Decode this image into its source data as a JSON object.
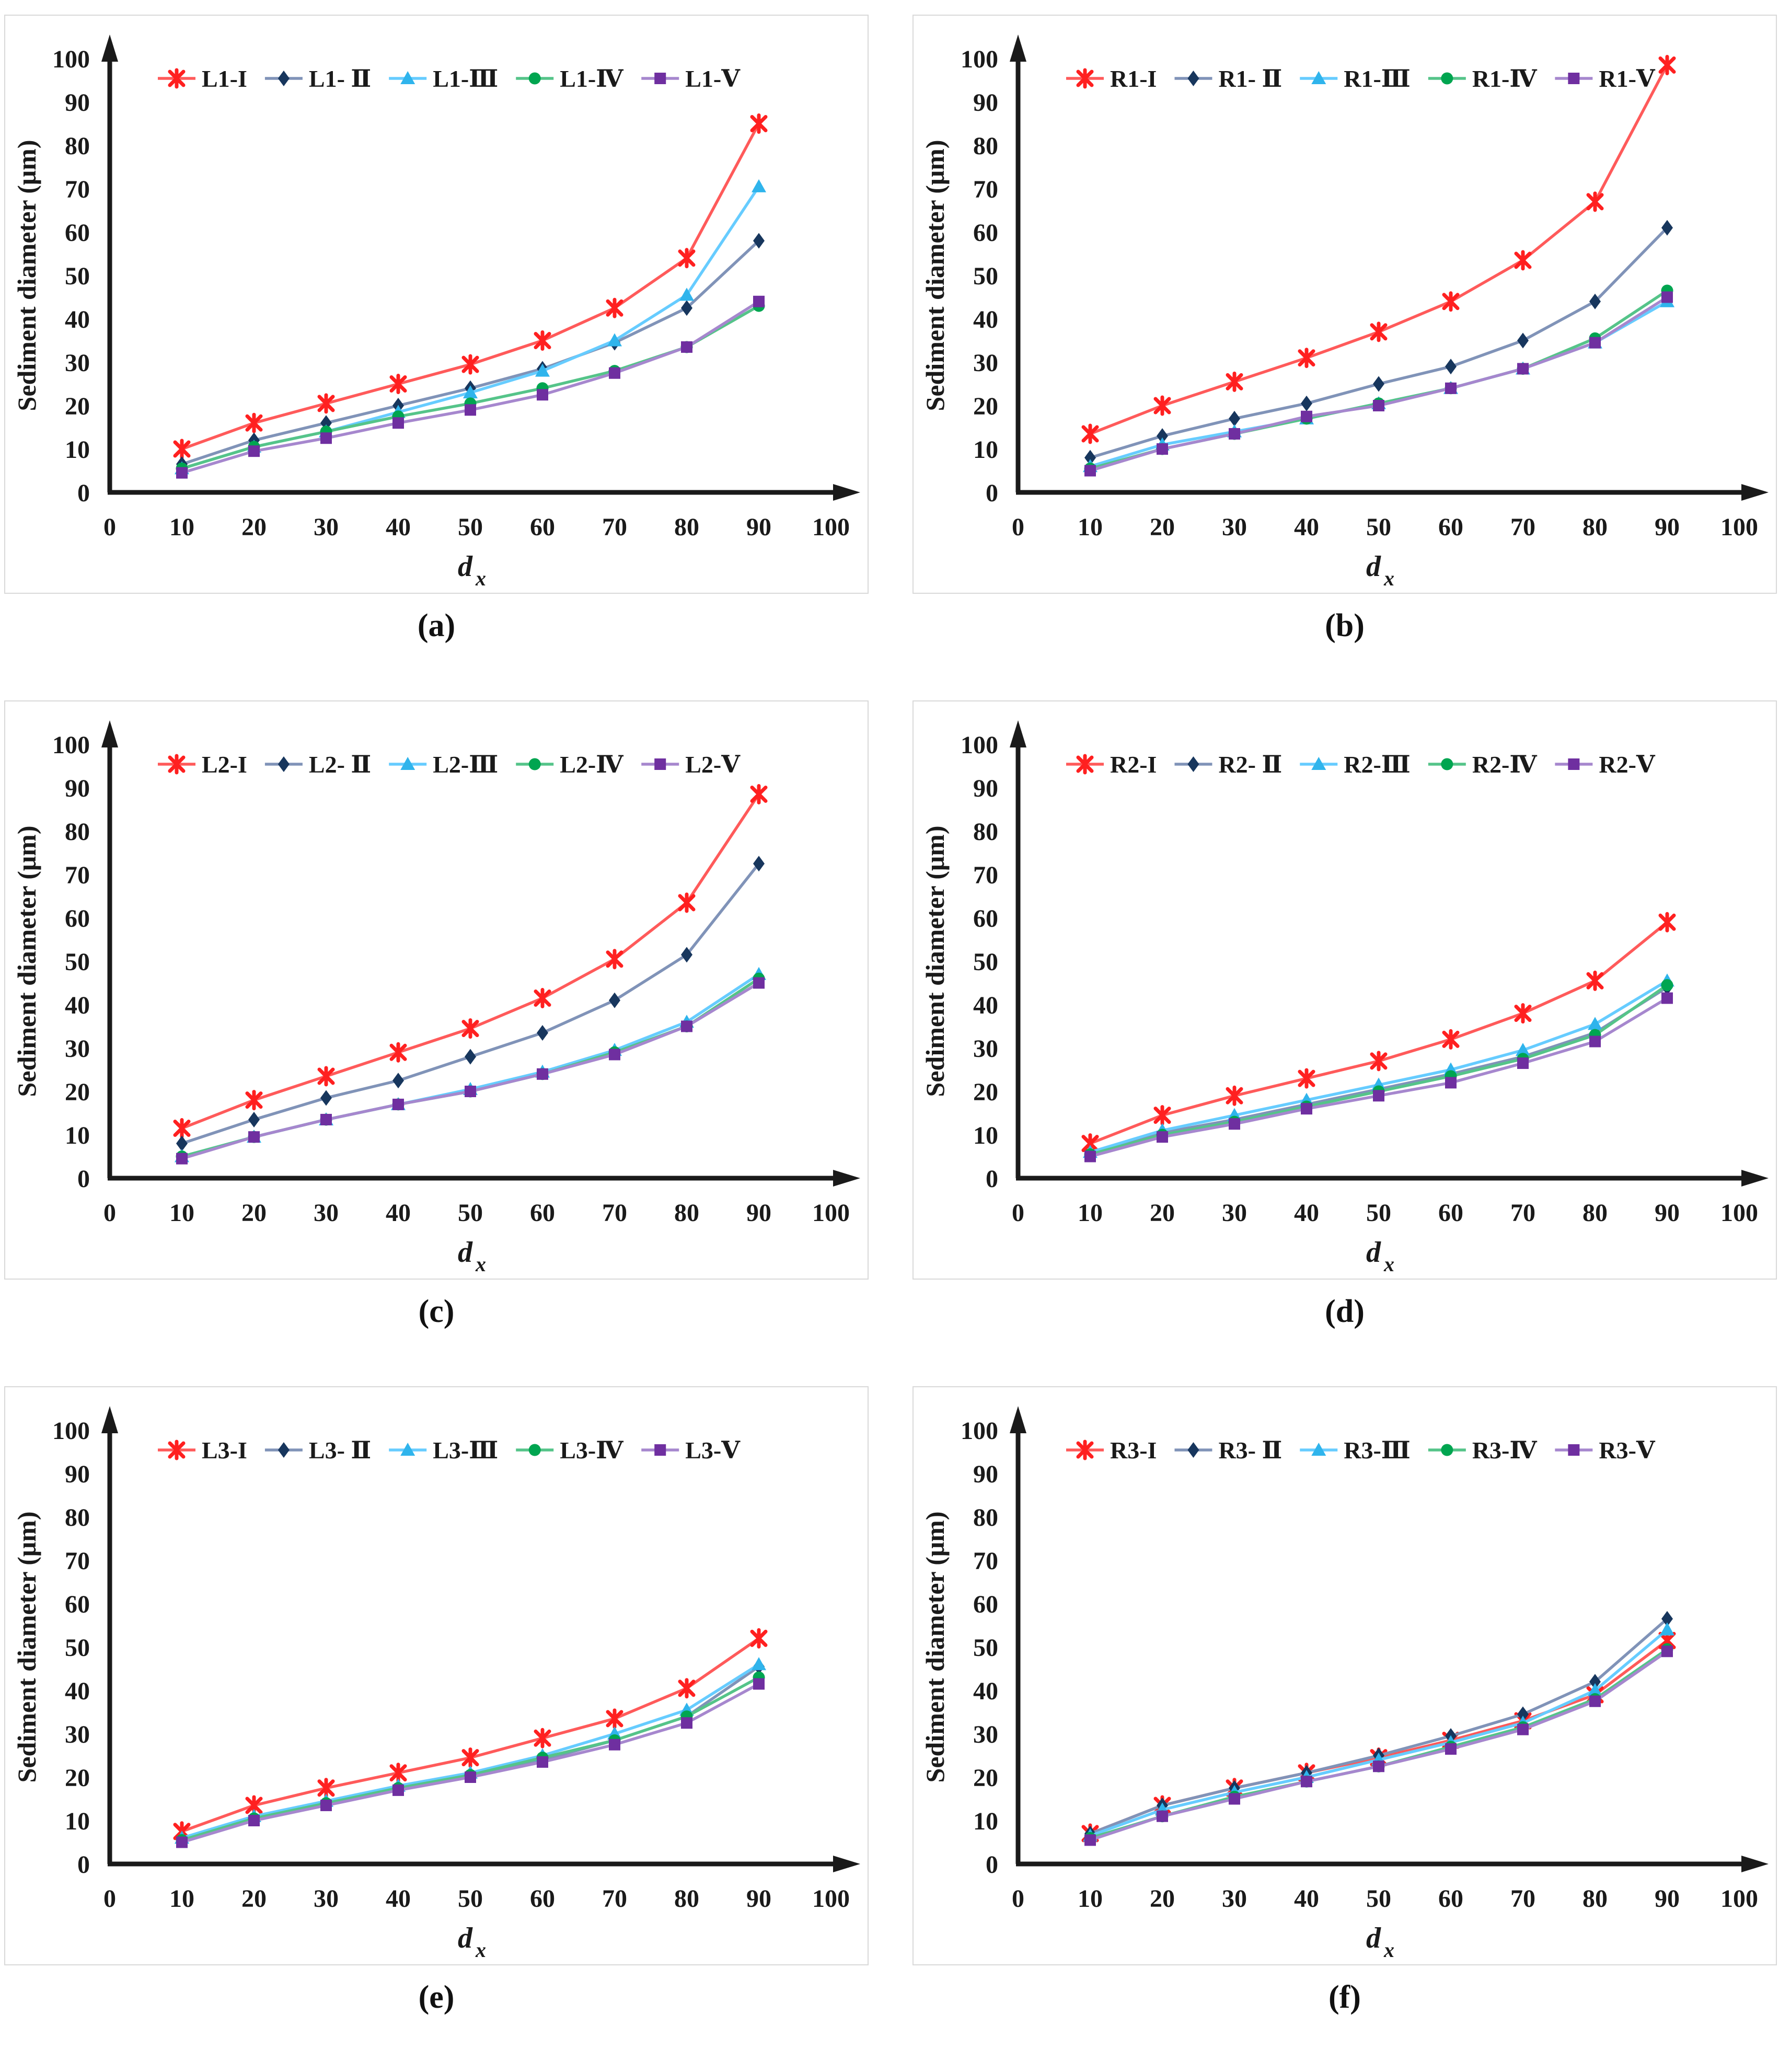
{
  "figure": {
    "ylabel": "Sediment diameter (μm)",
    "xlabel": "d",
    "xlabel_subscript": "x",
    "x_values": [
      10,
      20,
      30,
      40,
      50,
      60,
      70,
      80,
      90
    ],
    "xticks": [
      0,
      10,
      20,
      30,
      40,
      50,
      60,
      70,
      80,
      90,
      100
    ],
    "yticks": [
      0,
      10,
      20,
      30,
      40,
      50,
      60,
      70,
      80,
      90,
      100
    ],
    "xlim": [
      0,
      100
    ],
    "ylim": [
      0,
      100
    ],
    "grid": "off",
    "legend_position": "top-inside",
    "axis_color": "#1a1a1a",
    "panel_border_color": "#d9d9d9",
    "series_styles": [
      {
        "key": "I",
        "marker": "star",
        "marker_color": "#ff2020",
        "line_color": "#ff5a5a"
      },
      {
        "key": "II",
        "marker": "diamond",
        "marker_color": "#17365d",
        "line_color": "#8093b8"
      },
      {
        "key": "III",
        "marker": "triangle",
        "marker_color": "#2fb4ec",
        "line_color": "#66ccff"
      },
      {
        "key": "IV",
        "marker": "circle",
        "marker_color": "#00a550",
        "line_color": "#55c489"
      },
      {
        "key": "V",
        "marker": "square",
        "marker_color": "#6f2fa0",
        "line_color": "#a687ce"
      }
    ]
  },
  "chart_data": [
    {
      "type": "line",
      "id": "a",
      "caption": "(a)",
      "group": "L1",
      "series": [
        {
          "name": "L1-I",
          "values": [
            10,
            16,
            20.5,
            25,
            29.5,
            35,
            42.5,
            54,
            85
          ]
        },
        {
          "name": "L1- Ⅱ",
          "values": [
            6.5,
            12,
            16,
            20,
            24,
            28.5,
            34.5,
            42.5,
            58
          ]
        },
        {
          "name": "L1-Ⅲ",
          "values": [
            5.5,
            10.5,
            14,
            18.5,
            23,
            28,
            35,
            45.5,
            70.5
          ]
        },
        {
          "name": "L1-Ⅳ",
          "values": [
            5.5,
            10.5,
            14,
            17.5,
            20.5,
            24,
            28,
            33.5,
            43
          ]
        },
        {
          "name": "L1-Ⅴ",
          "values": [
            4.5,
            9.5,
            12.5,
            16,
            19,
            22.5,
            27.5,
            33.5,
            44
          ]
        }
      ]
    },
    {
      "type": "line",
      "id": "b",
      "caption": "(b)",
      "group": "R1",
      "series": [
        {
          "name": "R1-I",
          "values": [
            13.5,
            20,
            25.5,
            31,
            37,
            44,
            53.5,
            67,
            98.5
          ]
        },
        {
          "name": "R1- Ⅱ",
          "values": [
            8,
            13,
            17,
            20.5,
            25,
            29,
            35,
            44,
            61
          ]
        },
        {
          "name": "R1-Ⅲ",
          "values": [
            6,
            11,
            14,
            17,
            20.5,
            24,
            28.5,
            34.5,
            44
          ]
        },
        {
          "name": "R1-Ⅳ",
          "values": [
            5.5,
            10,
            13.5,
            17,
            20.5,
            24,
            28.5,
            35.5,
            46.5
          ]
        },
        {
          "name": "R1-Ⅴ",
          "values": [
            5,
            10,
            13.5,
            17.5,
            20,
            24,
            28.5,
            34.5,
            45
          ]
        }
      ]
    },
    {
      "type": "line",
      "id": "c",
      "caption": "(c)",
      "group": "L2",
      "series": [
        {
          "name": "L2-I",
          "values": [
            11.5,
            18,
            23.5,
            29,
            34.5,
            41.5,
            50.5,
            63.5,
            88.5
          ]
        },
        {
          "name": "L2- Ⅱ",
          "values": [
            8,
            13.5,
            18.5,
            22.5,
            28,
            33.5,
            41,
            51.5,
            72.5
          ]
        },
        {
          "name": "L2-Ⅲ",
          "values": [
            5,
            9.5,
            13.5,
            17,
            20.5,
            24.5,
            29.5,
            36,
            47
          ]
        },
        {
          "name": "L2-Ⅳ",
          "values": [
            5,
            9.5,
            13.5,
            17,
            20,
            24,
            29,
            35,
            46
          ]
        },
        {
          "name": "L2-Ⅴ",
          "values": [
            4.5,
            9.5,
            13.5,
            17,
            20,
            24,
            28.5,
            35,
            45
          ]
        }
      ]
    },
    {
      "type": "line",
      "id": "d",
      "caption": "(d)",
      "group": "R2",
      "series": [
        {
          "name": "R2-I",
          "values": [
            8,
            14.5,
            19,
            23,
            27,
            32,
            38,
            45.5,
            59
          ]
        },
        {
          "name": "R2- Ⅱ",
          "values": [
            5.5,
            10.5,
            13.5,
            17,
            20.5,
            24,
            28,
            33.5,
            44
          ]
        },
        {
          "name": "R2-Ⅲ",
          "values": [
            6,
            11,
            14.5,
            18,
            21.5,
            25,
            29.5,
            35.5,
            45.5
          ]
        },
        {
          "name": "R2-Ⅳ",
          "values": [
            5.5,
            10,
            13,
            16.5,
            20,
            23.5,
            27.5,
            33,
            44.5
          ]
        },
        {
          "name": "R2-Ⅴ",
          "values": [
            5,
            9.5,
            12.5,
            16,
            19,
            22,
            26.5,
            31.5,
            41.5
          ]
        }
      ]
    },
    {
      "type": "line",
      "id": "e",
      "caption": "(e)",
      "group": "L3",
      "series": [
        {
          "name": "L3-I",
          "values": [
            7.5,
            13.5,
            17.5,
            21,
            24.5,
            29,
            33.5,
            40.5,
            52
          ]
        },
        {
          "name": "L3- Ⅱ",
          "values": [
            5.5,
            10.5,
            14,
            17.5,
            20.5,
            24,
            28.5,
            34,
            45.5
          ]
        },
        {
          "name": "L3-Ⅲ",
          "values": [
            6,
            11,
            14.5,
            18,
            21,
            25,
            30,
            35.5,
            46
          ]
        },
        {
          "name": "L3-Ⅳ",
          "values": [
            5.5,
            10.5,
            14,
            17.5,
            20.5,
            24.5,
            28.5,
            34,
            43
          ]
        },
        {
          "name": "L3-Ⅴ",
          "values": [
            5,
            10,
            13.5,
            17,
            20,
            23.5,
            27.5,
            32.5,
            41.5
          ]
        }
      ]
    },
    {
      "type": "line",
      "id": "f",
      "caption": "(f)",
      "group": "R3",
      "series": [
        {
          "name": "R3-I",
          "values": [
            7,
            13.5,
            17.5,
            21,
            24.5,
            28.5,
            33,
            39,
            51.5
          ]
        },
        {
          "name": "R3- Ⅱ",
          "values": [
            7,
            13.5,
            17.5,
            21,
            25,
            29.5,
            34.5,
            42,
            56.5
          ]
        },
        {
          "name": "R3-Ⅲ",
          "values": [
            6.5,
            12.5,
            16.5,
            20,
            24,
            28,
            32.5,
            40,
            54
          ]
        },
        {
          "name": "R3-Ⅳ",
          "values": [
            6,
            11,
            15.5,
            19,
            22.5,
            27,
            31.5,
            38,
            49.5
          ]
        },
        {
          "name": "R3-Ⅴ",
          "values": [
            5.5,
            11,
            15,
            19,
            22.5,
            26.5,
            31,
            37.5,
            49
          ]
        }
      ]
    }
  ]
}
